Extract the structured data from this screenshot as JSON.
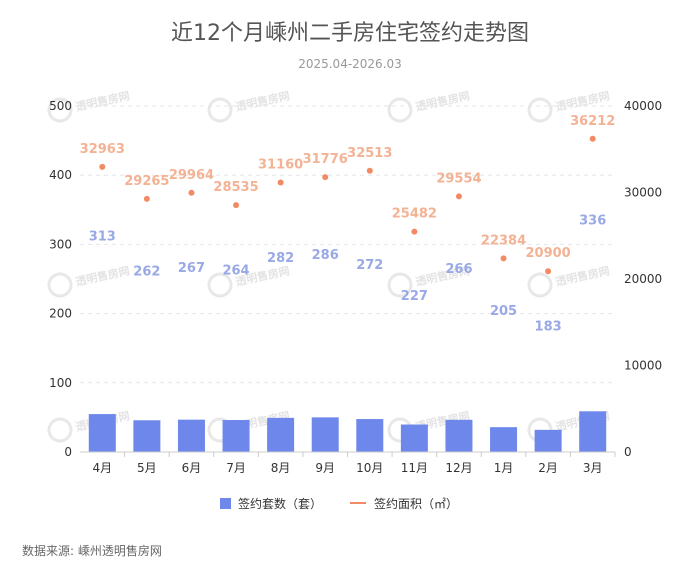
{
  "title": "近12个月嵊州二手房住宅签约走势图",
  "subtitle": "2025.04-2026.03",
  "source": "数据来源: 嵊州透明售房网",
  "watermark": "透明售房网",
  "chart_data": {
    "type": "bar+line",
    "categories": [
      "4月",
      "5月",
      "6月",
      "7月",
      "8月",
      "9月",
      "10月",
      "11月",
      "12月",
      "1月",
      "2月",
      "3月"
    ],
    "series": [
      {
        "name": "签约套数（套）",
        "type": "bar",
        "axis": "left",
        "color": "#6d87ea",
        "values": [
          313,
          262,
          267,
          264,
          282,
          286,
          272,
          227,
          266,
          205,
          183,
          336
        ]
      },
      {
        "name": "签约面积（㎡）",
        "type": "line",
        "axis": "right",
        "color": "#f28b63",
        "values": [
          32963,
          29265,
          29964,
          28535,
          31160,
          31776,
          32513,
          25482,
          29554,
          22384,
          20900,
          36212
        ]
      }
    ],
    "y_left": {
      "ticks": [
        0,
        100,
        200,
        300,
        400,
        500
      ],
      "lim": [
        0,
        500
      ]
    },
    "y_right": {
      "ticks": [
        0,
        10000,
        20000,
        30000,
        40000
      ],
      "lim": [
        0,
        40000
      ]
    },
    "grid": true,
    "legend_position": "bottom"
  }
}
